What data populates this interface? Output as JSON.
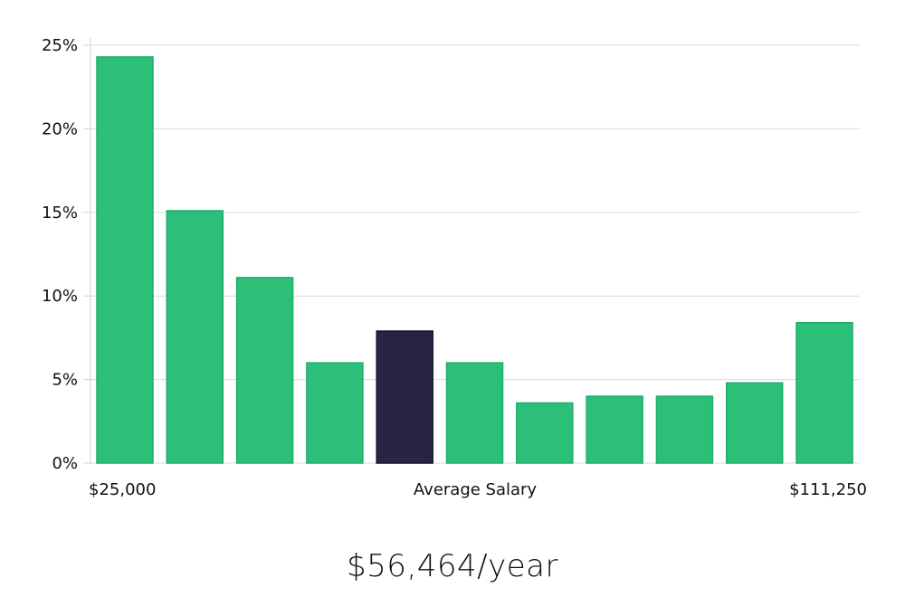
{
  "chart_data": {
    "type": "bar",
    "title": "",
    "xlabel": "Average Salary",
    "ylabel": "",
    "ylim": [
      0,
      25
    ],
    "yticks": [
      "0%",
      "5%",
      "10%",
      "15%",
      "20%",
      "25%"
    ],
    "x_start_label": "$25,000",
    "x_end_label": "$111,250",
    "values": [
      24.3,
      15.1,
      11.1,
      6.0,
      7.9,
      6.0,
      3.6,
      4.0,
      4.0,
      4.8,
      8.4
    ],
    "highlight_index": 4,
    "grid": true,
    "colors": {
      "bar": "#2bbf79",
      "bar_border": "#1fae69",
      "highlight": "#272444",
      "highlight_border": "#15132b"
    }
  },
  "footer": {
    "salary": "$56,464/year"
  }
}
